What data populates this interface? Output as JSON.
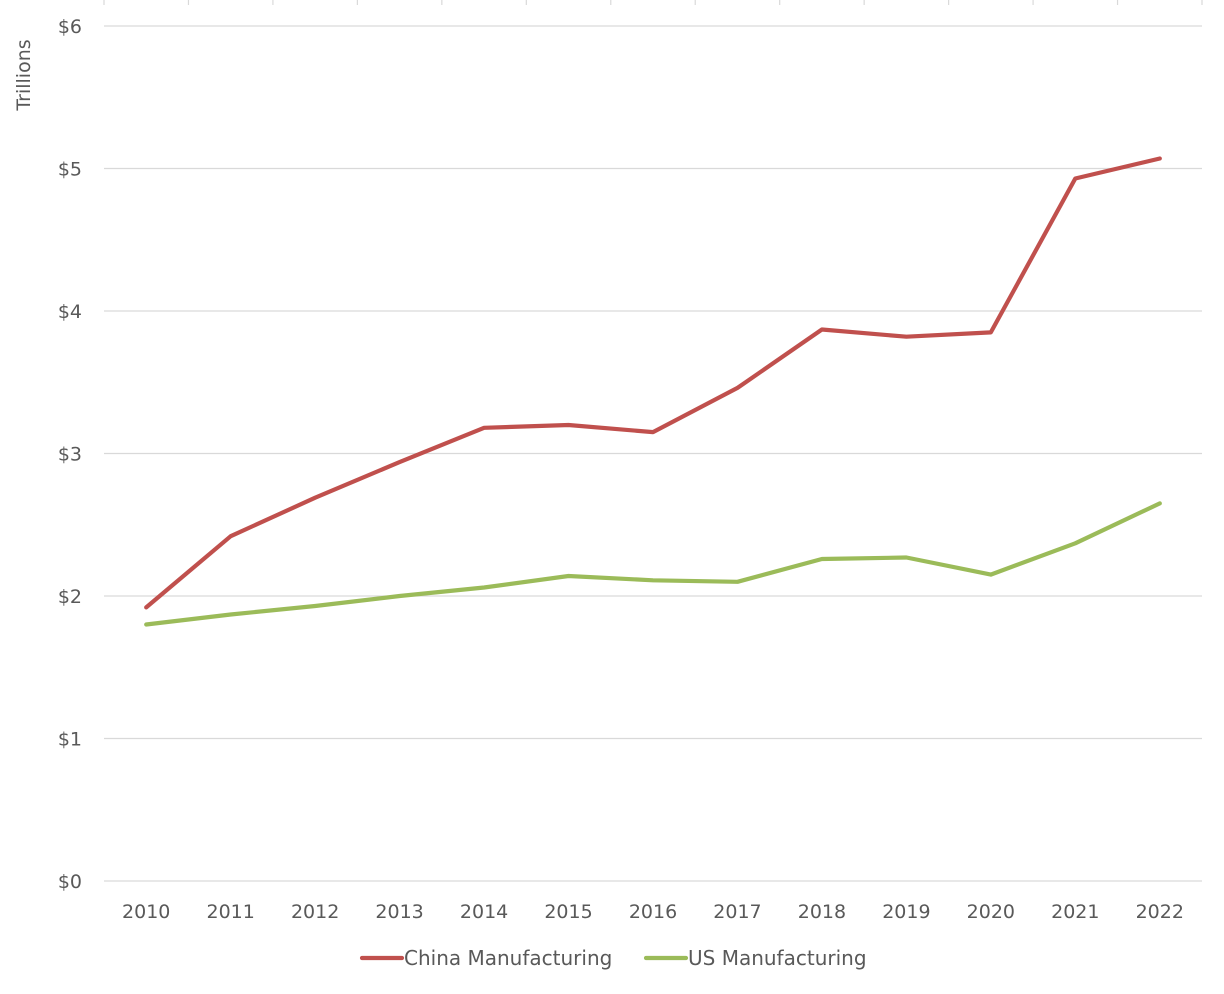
{
  "chart_data": {
    "type": "line",
    "ylabel": "Trillions",
    "x": [
      "2010",
      "2011",
      "2012",
      "2013",
      "2014",
      "2015",
      "2016",
      "2017",
      "2018",
      "2019",
      "2020",
      "2021",
      "2022"
    ],
    "ylim": [
      0,
      6
    ],
    "y_ticks": [
      0,
      1,
      2,
      3,
      4,
      5,
      6
    ],
    "y_tick_labels": [
      "$0",
      "$1",
      "$2",
      "$3",
      "$4",
      "$5",
      "$6"
    ],
    "grid": true,
    "legend_position": "bottom",
    "series": [
      {
        "name": "China Manufacturing",
        "color": "#C0504D",
        "values": [
          1.92,
          2.42,
          2.69,
          2.94,
          3.18,
          3.2,
          3.15,
          3.46,
          3.87,
          3.82,
          3.85,
          4.93,
          5.07
        ]
      },
      {
        "name": "US Manufacturing",
        "color": "#9BBB59",
        "values": [
          1.8,
          1.87,
          1.93,
          2.0,
          2.06,
          2.14,
          2.11,
          2.1,
          2.26,
          2.27,
          2.15,
          2.37,
          2.65
        ]
      }
    ]
  }
}
